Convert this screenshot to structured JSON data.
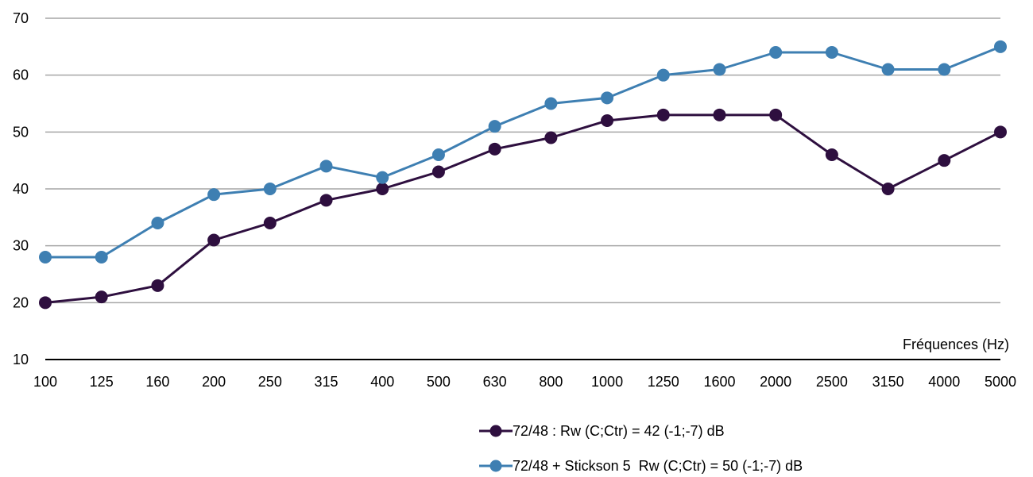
{
  "chart_data": {
    "type": "line",
    "xlabel": "Fréquences (Hz)",
    "ylabel": "",
    "ylim": [
      10,
      70
    ],
    "yticks": [
      10,
      20,
      30,
      40,
      50,
      60,
      70
    ],
    "grid": true,
    "legend_position": "bottom",
    "categories": [
      "100",
      "125",
      "160",
      "200",
      "250",
      "315",
      "400",
      "500",
      "630",
      "800",
      "1000",
      "1250",
      "1600",
      "2000",
      "2500",
      "3150",
      "4000",
      "5000"
    ],
    "series": [
      {
        "name": "72/48 : Rw (C;Ctr) = 42 (-1;-7) dB",
        "color": "#2e0f3f",
        "values": [
          20,
          21,
          23,
          31,
          34,
          38,
          40,
          43,
          47,
          49,
          52,
          53,
          53,
          53,
          46,
          40,
          45,
          50
        ]
      },
      {
        "name": "72/48 + Stickson 5  Rw (C;Ctr) = 50 (-1;-7) dB",
        "color": "#3e7fb2",
        "values": [
          28,
          28,
          34,
          39,
          40,
          44,
          42,
          46,
          51,
          55,
          56,
          60,
          61,
          64,
          64,
          61,
          61,
          65
        ]
      }
    ]
  }
}
